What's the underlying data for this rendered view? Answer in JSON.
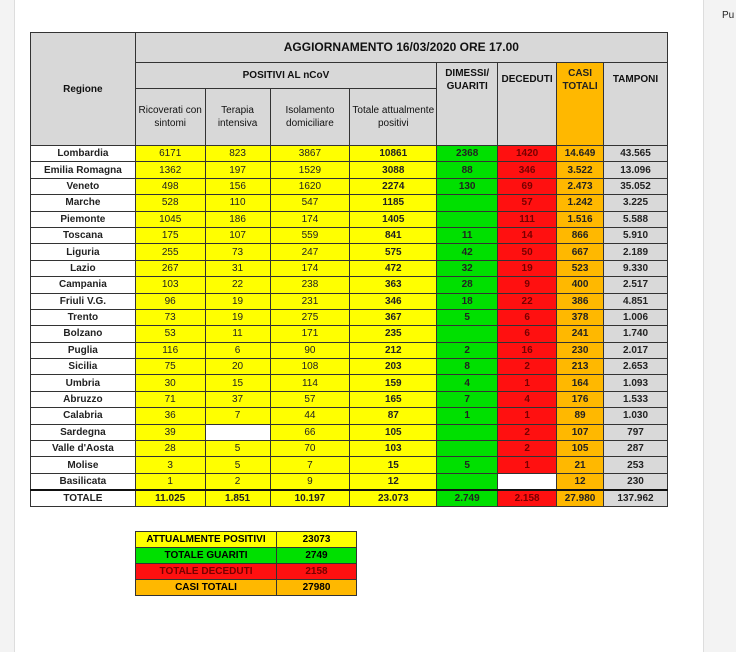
{
  "corner_text": "Pu",
  "title": "AGGIORNAMENTO 16/03/2020 ORE 17.00",
  "headers": {
    "regione": "Regione",
    "positivi": "POSITIVI AL nCoV",
    "ricoverati": "Ricoverati con sintomi",
    "terapia": "Terapia intensiva",
    "isolamento": "Isolamento domiciliare",
    "totale_pos": "Totale attualmente positivi",
    "dimessi": "DIMESSI/ GUARITI",
    "deceduti": "DECEDUTI",
    "casi": "CASI TOTALI",
    "tamponi": "TAMPONI"
  },
  "rows": [
    [
      "Lombardia",
      "6171",
      "823",
      "3867",
      "10861",
      "2368",
      "1420",
      "14.649",
      "43.565"
    ],
    [
      "Emilia Romagna",
      "1362",
      "197",
      "1529",
      "3088",
      "88",
      "346",
      "3.522",
      "13.096"
    ],
    [
      "Veneto",
      "498",
      "156",
      "1620",
      "2274",
      "130",
      "69",
      "2.473",
      "35.052"
    ],
    [
      "Marche",
      "528",
      "110",
      "547",
      "1185",
      "",
      "57",
      "1.242",
      "3.225"
    ],
    [
      "Piemonte",
      "1045",
      "186",
      "174",
      "1405",
      "",
      "111",
      "1.516",
      "5.588"
    ],
    [
      "Toscana",
      "175",
      "107",
      "559",
      "841",
      "11",
      "14",
      "866",
      "5.910"
    ],
    [
      "Liguria",
      "255",
      "73",
      "247",
      "575",
      "42",
      "50",
      "667",
      "2.189"
    ],
    [
      "Lazio",
      "267",
      "31",
      "174",
      "472",
      "32",
      "19",
      "523",
      "9.330"
    ],
    [
      "Campania",
      "103",
      "22",
      "238",
      "363",
      "28",
      "9",
      "400",
      "2.517"
    ],
    [
      "Friuli V.G.",
      "96",
      "19",
      "231",
      "346",
      "18",
      "22",
      "386",
      "4.851"
    ],
    [
      "Trento",
      "73",
      "19",
      "275",
      "367",
      "5",
      "6",
      "378",
      "1.006"
    ],
    [
      "Bolzano",
      "53",
      "11",
      "171",
      "235",
      "",
      "6",
      "241",
      "1.740"
    ],
    [
      "Puglia",
      "116",
      "6",
      "90",
      "212",
      "2",
      "16",
      "230",
      "2.017"
    ],
    [
      "Sicilia",
      "75",
      "20",
      "108",
      "203",
      "8",
      "2",
      "213",
      "2.653"
    ],
    [
      "Umbria",
      "30",
      "15",
      "114",
      "159",
      "4",
      "1",
      "164",
      "1.093"
    ],
    [
      "Abruzzo",
      "71",
      "37",
      "57",
      "165",
      "7",
      "4",
      "176",
      "1.533"
    ],
    [
      "Calabria",
      "36",
      "7",
      "44",
      "87",
      "1",
      "1",
      "89",
      "1.030"
    ],
    [
      "Sardegna",
      "39",
      "",
      "66",
      "105",
      "",
      "2",
      "107",
      "797"
    ],
    [
      "Valle d'Aosta",
      "28",
      "5",
      "70",
      "103",
      "",
      "2",
      "105",
      "287"
    ],
    [
      "Molise",
      "3",
      "5",
      "7",
      "15",
      "5",
      "1",
      "21",
      "253"
    ],
    [
      "Basilicata",
      "1",
      "2",
      "9",
      "12",
      "",
      "",
      "12",
      "230"
    ]
  ],
  "total": [
    "TOTALE",
    "11.025",
    "1.851",
    "10.197",
    "23.073",
    "2.749",
    "2.158",
    "27.980",
    "137.962"
  ],
  "summary": [
    {
      "label": "ATTUALMENTE POSITIVI",
      "value": "23073",
      "color": "#ffff00"
    },
    {
      "label": "TOTALE GUARITI",
      "value": "2749",
      "color": "#00e000"
    },
    {
      "label": "TOTALE DECEDUTI",
      "value": "2158",
      "color": "#ff1010"
    },
    {
      "label": "CASI TOTALI",
      "value": "27980",
      "color": "#ffb800"
    }
  ],
  "colors": {
    "positivi": "#ffff00",
    "guariti": "#00e000",
    "deceduti": "#ff1010",
    "casi": "#ffb800",
    "tamponi": "#d9d9d9"
  }
}
